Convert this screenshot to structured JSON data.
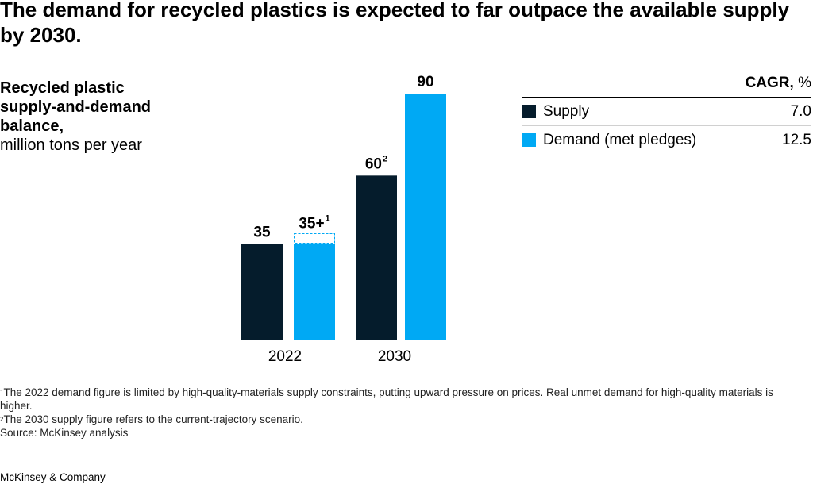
{
  "title": "The demand for recycled plastics is expected to far outpace the available supply by 2030.",
  "subtitle": {
    "bold": "Recycled plastic supply-and-demand balance,",
    "regular": "million tons per year"
  },
  "legend": {
    "header_bold": "CAGR,",
    "header_unit": "%",
    "items": [
      {
        "name": "Supply",
        "value": "7.0",
        "color": "#051c2c"
      },
      {
        "name": "Demand (met pledges)",
        "value": "12.5",
        "color": "#00a9f4"
      }
    ]
  },
  "chart_data": {
    "type": "bar",
    "categories": [
      "2022",
      "2030"
    ],
    "series": [
      {
        "name": "Supply",
        "color": "#051c2c",
        "values": [
          35,
          60
        ],
        "labels": [
          "35",
          "60"
        ],
        "label_sups": [
          "",
          "2"
        ]
      },
      {
        "name": "Demand (met pledges)",
        "color": "#00a9f4",
        "values": [
          35,
          90
        ],
        "labels": [
          "35+",
          "90"
        ],
        "label_sups": [
          "1",
          ""
        ]
      }
    ],
    "annotations": [
      {
        "series": 1,
        "category": 0,
        "note": "dashed box above bar indicating unmet demand (35+)"
      }
    ],
    "ylim": [
      0,
      90
    ],
    "xlabel": "",
    "ylabel": "million tons per year"
  },
  "footnotes": [
    {
      "marker": "1",
      "text": "The 2022 demand figure is limited by high-quality-materials supply constraints, putting upward pressure on prices. Real unmet demand for high-quality materials is higher."
    },
    {
      "marker": "2",
      "text": "The 2030 supply figure refers to the current-trajectory scenario."
    }
  ],
  "source": "Source: McKinsey analysis",
  "brand": "McKinsey & Company"
}
